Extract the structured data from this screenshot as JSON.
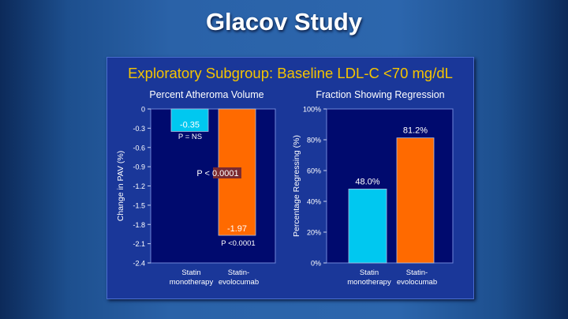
{
  "slide": {
    "title": "Glacov Study",
    "subtitle": "Exploratory Subgroup: Baseline LDL-C <70 mg/dL"
  },
  "chart_data": [
    {
      "type": "bar",
      "title": "Percent Atheroma Volume",
      "ylabel": "Change in PAV (%)",
      "ylim": [
        -2.4,
        0
      ],
      "yticks": [
        "0",
        "-0.3",
        "-0.6",
        "-0.9",
        "-1.2",
        "-1.5",
        "-1.8",
        "-2.1",
        "-2.4"
      ],
      "categories": [
        "Statin monotherapy",
        "Statin-evolocumab"
      ],
      "category_lines": [
        [
          "Statin",
          "monotherapy"
        ],
        [
          "Statin-",
          "evolocumab"
        ]
      ],
      "values": [
        -0.35,
        -1.97
      ],
      "data_labels": [
        "-0.35",
        "-1.97"
      ],
      "annotations": [
        "P = NS",
        "P <0.0001",
        "P < 0.0001"
      ],
      "colors": [
        "#00c8f0",
        "#ff6a00"
      ],
      "plot_bg": "#000a6e"
    },
    {
      "type": "bar",
      "title": "Fraction Showing Regression",
      "ylabel": "Percentage Regressing (%)",
      "ylim": [
        0,
        100
      ],
      "yticks": [
        "0%",
        "20%",
        "40%",
        "60%",
        "80%",
        "100%"
      ],
      "categories": [
        "Statin monotherapy",
        "Statin-evolocumab"
      ],
      "category_lines": [
        [
          "Statin",
          "monotherapy"
        ],
        [
          "Statin-",
          "evolocumab"
        ]
      ],
      "values": [
        48.0,
        81.2
      ],
      "data_labels": [
        "48.0%",
        "81.2%"
      ],
      "colors": [
        "#00c8f0",
        "#ff6a00"
      ],
      "plot_bg": "#000a6e"
    }
  ]
}
